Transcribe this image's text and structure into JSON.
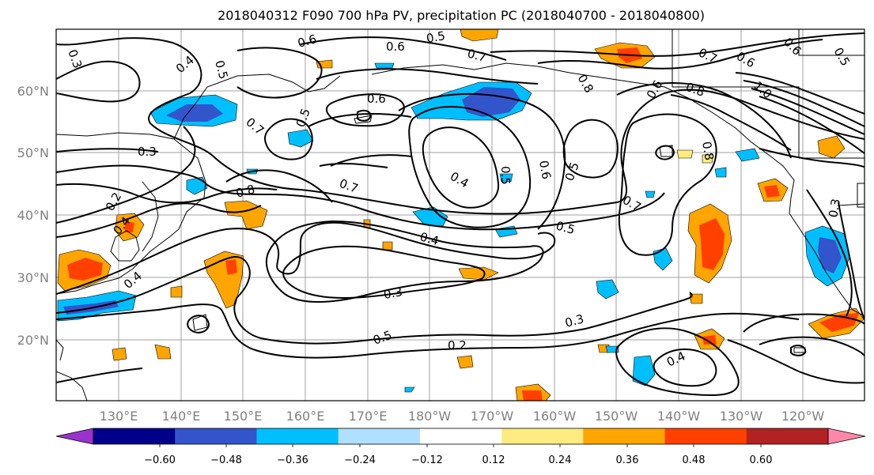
{
  "title": "2018040312 F090 700 hPa PV, precipitation PC (2018040700 - 2018040800)",
  "lat_labels": [
    "60°N",
    "50°N",
    "40°N",
    "30°N",
    "20°N"
  ],
  "lon_labels": [
    "130°E",
    "140°E",
    "150°E",
    "160°E",
    "170°E",
    "180°W",
    "170°W",
    "160°W",
    "150°W",
    "140°W",
    "130°W",
    "120°W"
  ],
  "contour_labels": [
    "0.3",
    "0.4",
    "0.5",
    "0.6",
    "0.5",
    "0.6",
    "0.7",
    "0.8",
    "0.7",
    "0.6",
    "1.0",
    "0.6",
    "0.5",
    "0.6",
    "0.7",
    "0.5",
    "0.8",
    "0.6",
    "0.3",
    "0.2",
    "0.4",
    "0.4",
    "0.8",
    "0.7",
    "0.4",
    "0.5",
    "0.6",
    "0.5",
    "0.7",
    "0.5",
    "0.4",
    "0.3",
    "0.5",
    "0.2",
    "0.3",
    "0.4",
    "0.8",
    "0.3"
  ],
  "colorbar": {
    "ticks": [
      "−0.60",
      "−0.48",
      "−0.36",
      "−0.24",
      "−0.12",
      "0.12",
      "0.24",
      "0.36",
      "0.48",
      "0.60"
    ],
    "colors": [
      "#9933cc",
      "#00008b",
      "#3355cc",
      "#00bfff",
      "#b0e0ff",
      "#ffffff",
      "#ffeb7f",
      "#ffa500",
      "#ff4000",
      "#b22222",
      "#ff88aa"
    ]
  },
  "colors": {
    "contour": "#000000",
    "grid": "#a0a0a0",
    "pos_low": "#ffeb7f",
    "pos_mid": "#ffa500",
    "pos_high": "#ff4000",
    "neg_low": "#b0e0ff",
    "neg_mid": "#00bfff",
    "neg_high": "#3355cc"
  }
}
